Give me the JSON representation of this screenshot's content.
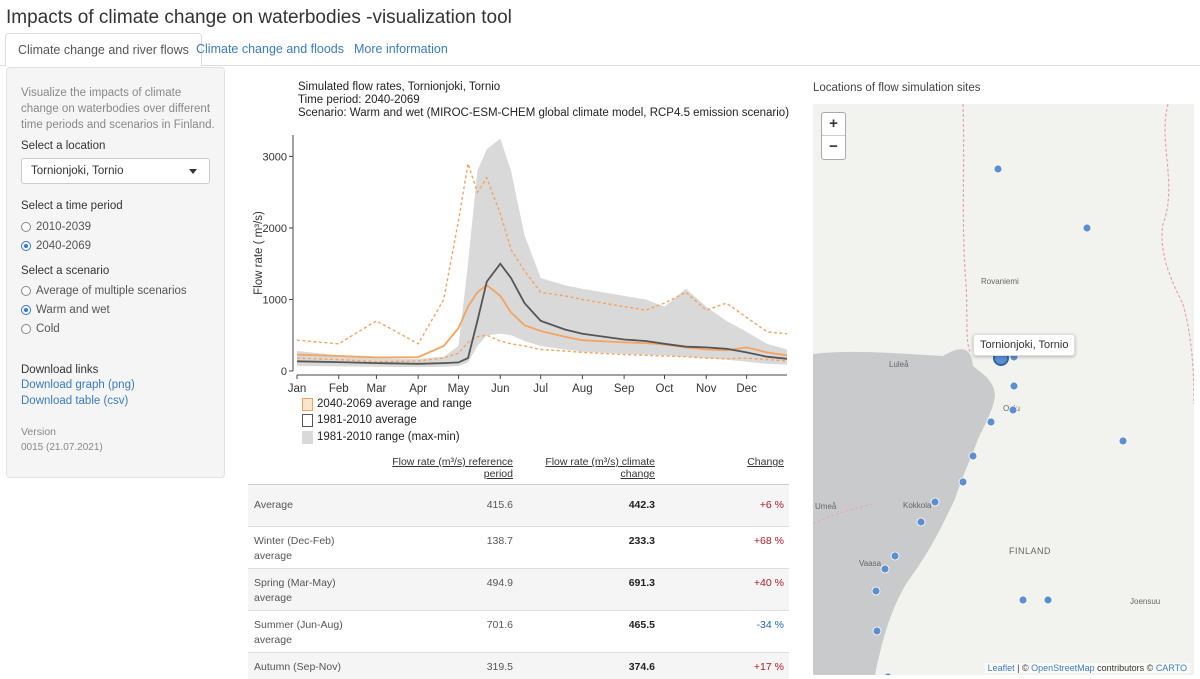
{
  "app_title": "Impacts of climate change on waterbodies -visualization tool",
  "tabs": [
    {
      "label": "Climate change and river flows",
      "active": true
    },
    {
      "label": "Climate change and floods",
      "active": false
    },
    {
      "label": "More information",
      "active": false
    }
  ],
  "sidebar": {
    "intro": "Visualize the impacts of climate change on waterbodies over different time periods and scenarios in Finland.",
    "location_label": "Select a location",
    "location_value": "Tornionjoki, Tornio",
    "period_label": "Select a time period",
    "periods": [
      {
        "label": "2010-2039",
        "selected": false
      },
      {
        "label": "2040-2069",
        "selected": true
      }
    ],
    "scenario_label": "Select a scenario",
    "scenarios": [
      {
        "label": "Average of multiple scenarios",
        "selected": false
      },
      {
        "label": "Warm and wet",
        "selected": true
      },
      {
        "label": "Cold",
        "selected": false
      }
    ],
    "download_label": "Download links",
    "download_graph": "Download graph (png)",
    "download_table": "Download table (csv)",
    "version_label": "Version",
    "version_value": "0015 (21.07.2021)"
  },
  "chart_header": {
    "line1": "Simulated flow rates, Tornionjoki, Tornio",
    "line2": "Time period: 2040-2069",
    "line3": "Scenario: Warm and wet (MIROC-ESM-CHEM global climate model, RCP4.5 emission scenario)"
  },
  "chart_data": {
    "type": "line",
    "ylabel": "Flow rate ( m³/s)",
    "ylim": [
      0,
      3300
    ],
    "yticks": [
      0,
      1000,
      2000,
      3000
    ],
    "months": [
      "Jan",
      "Feb",
      "Mar",
      "Apr",
      "May",
      "Jun",
      "Jul",
      "Aug",
      "Sep",
      "Oct",
      "Nov",
      "Dec"
    ],
    "colors": {
      "future": "#f4a460",
      "reference": "#555555",
      "range": "#d9d9d9"
    },
    "legend": [
      "2040-2069 average and range",
      "1981-2010 average",
      "1981-2010 range (max-min)"
    ],
    "x_day": [
      1,
      32,
      60,
      91,
      110,
      121,
      128,
      135,
      142,
      152,
      160,
      170,
      182,
      200,
      213,
      244,
      260,
      274,
      290,
      305,
      320,
      335,
      350,
      365
    ],
    "series": [
      {
        "name": "2040-2069 average and range",
        "values": [
          230,
          210,
          190,
          195,
          350,
          600,
          900,
          1100,
          1200,
          1050,
          820,
          640,
          560,
          480,
          430,
          400,
          390,
          370,
          330,
          300,
          290,
          330,
          260,
          220
        ]
      },
      {
        "name": "1981-2010 average",
        "values": [
          135,
          125,
          110,
          100,
          110,
          120,
          180,
          700,
          1250,
          1500,
          1300,
          950,
          700,
          580,
          520,
          440,
          420,
          380,
          340,
          330,
          310,
          260,
          200,
          170
        ]
      }
    ],
    "future_max": [
      430,
      380,
      700,
      380,
      1000,
      2100,
      2900,
      2500,
      2700,
      2200,
      1700,
      1400,
      1100,
      1050,
      1000,
      900,
      850,
      950,
      1100,
      850,
      950,
      750,
      550,
      520
    ],
    "future_min": [
      180,
      160,
      130,
      140,
      180,
      250,
      400,
      480,
      500,
      420,
      380,
      350,
      300,
      280,
      260,
      230,
      220,
      210,
      200,
      180,
      170,
      180,
      160,
      140
    ],
    "ref_max": [
      280,
      220,
      180,
      170,
      200,
      350,
      1500,
      2800,
      3100,
      3250,
      2800,
      1900,
      1300,
      1200,
      1150,
      1050,
      1000,
      900,
      1150,
      900,
      700,
      550,
      380,
      300
    ],
    "ref_min": [
      70,
      65,
      60,
      55,
      60,
      70,
      120,
      350,
      500,
      520,
      500,
      420,
      350,
      300,
      270,
      240,
      230,
      220,
      200,
      180,
      160,
      130,
      100,
      90
    ]
  },
  "table": {
    "headers": {
      "ref": "Flow rate (m³/s) reference period",
      "cc": "Flow rate (m³/s) climate change",
      "change": "Change"
    },
    "rows": [
      {
        "label": "Average",
        "ref": "415.6",
        "cc": "442.3",
        "change": "+6 %",
        "dir": "up"
      },
      {
        "label": "Winter (Dec-Feb) average",
        "ref": "138.7",
        "cc": "233.3",
        "change": "+68 %",
        "dir": "up"
      },
      {
        "label": "Spring (Mar-May) average",
        "ref": "494.9",
        "cc": "691.3",
        "change": "+40 %",
        "dir": "up"
      },
      {
        "label": "Summer (Jun-Aug) average",
        "ref": "701.6",
        "cc": "465.5",
        "change": "-34 %",
        "dir": "down"
      },
      {
        "label": "Autumn (Sep-Nov) average",
        "ref": "319.5",
        "cc": "374.6",
        "change": "+17 %",
        "dir": "up"
      }
    ]
  },
  "map": {
    "title": "Locations of flow simulation sites",
    "zoom_in": "+",
    "zoom_out": "−",
    "popup": "Tornionjoki, Tornio",
    "place_labels": [
      "Rovaniemi",
      "Luleå",
      "Oulu",
      "Kokkola",
      "Vaasa",
      "Umeå",
      "FINLAND",
      "Joensuu"
    ],
    "attribution": {
      "leaflet": "Leaflet",
      "sep1": " | © ",
      "osm": "OpenStreetMap",
      "mid": " contributors © ",
      "carto": "CARTO"
    }
  }
}
